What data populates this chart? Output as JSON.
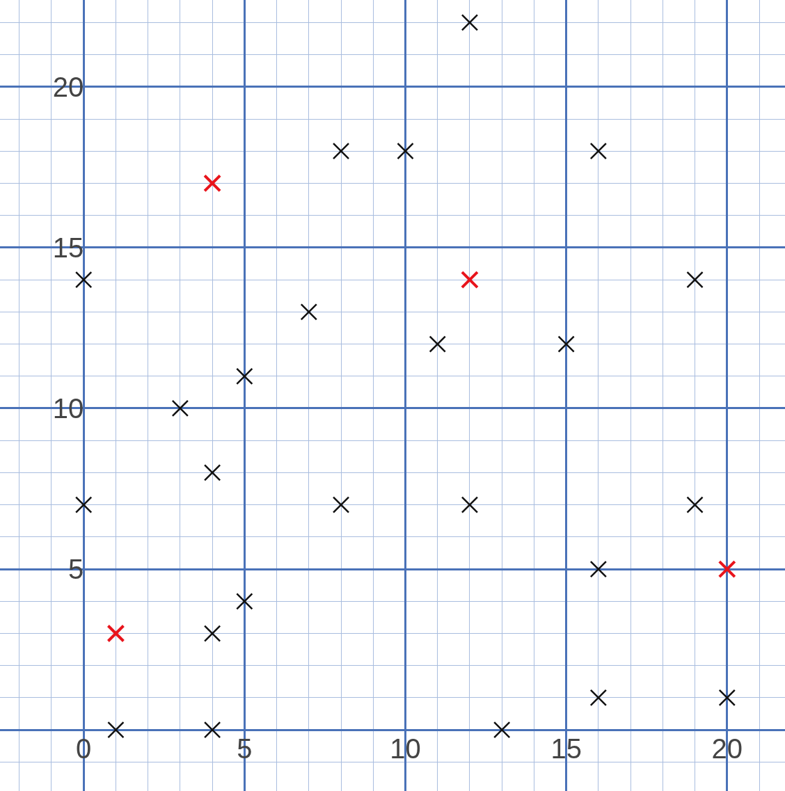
{
  "chart_data": {
    "type": "scatter",
    "xlim": [
      -2.6,
      21.8
    ],
    "ylim": [
      -1.9,
      22.7
    ],
    "xticks": [
      {
        "value": -2,
        "label": null
      },
      {
        "value": -1,
        "label": null
      },
      0,
      {
        "value": 1,
        "label": null
      },
      {
        "value": 2,
        "label": null
      },
      {
        "value": 3,
        "label": null
      },
      {
        "value": 4,
        "label": null
      },
      5,
      {
        "value": 6,
        "label": null
      },
      {
        "value": 7,
        "label": null
      },
      {
        "value": 8,
        "label": null
      },
      {
        "value": 9,
        "label": null
      },
      10,
      {
        "value": 11,
        "label": null
      },
      {
        "value": 12,
        "label": null
      },
      {
        "value": 13,
        "label": null
      },
      {
        "value": 14,
        "label": null
      },
      15,
      {
        "value": 16,
        "label": null
      },
      {
        "value": 17,
        "label": null
      },
      {
        "value": 18,
        "label": null
      },
      {
        "value": 19,
        "label": null
      },
      20,
      {
        "value": 21,
        "label": null
      }
    ],
    "yticks": [
      {
        "value": -1,
        "label": null
      },
      {
        "value": 0,
        "label": null
      },
      {
        "value": 1,
        "label": null
      },
      {
        "value": 2,
        "label": null
      },
      {
        "value": 3,
        "label": null
      },
      {
        "value": 4,
        "label": null
      },
      5,
      {
        "value": 6,
        "label": null
      },
      {
        "value": 7,
        "label": null
      },
      {
        "value": 8,
        "label": null
      },
      {
        "value": 9,
        "label": null
      },
      10,
      {
        "value": 11,
        "label": null
      },
      {
        "value": 12,
        "label": null
      },
      {
        "value": 13,
        "label": null
      },
      {
        "value": 14,
        "label": null
      },
      15,
      {
        "value": 16,
        "label": null
      },
      {
        "value": 17,
        "label": null
      },
      {
        "value": 18,
        "label": null
      },
      {
        "value": 19,
        "label": null
      },
      20,
      {
        "value": 21,
        "label": null
      },
      {
        "value": 22,
        "label": null
      }
    ],
    "grid": true,
    "marker": "cross",
    "series": [
      {
        "color": "#111111",
        "x": [
          1,
          4,
          13,
          16,
          20,
          4,
          5,
          16,
          0,
          8,
          12,
          19,
          4,
          3,
          5,
          7,
          11,
          15,
          0,
          19,
          8,
          10,
          16,
          12
        ],
        "values": [
          0,
          0,
          0,
          1,
          1,
          3,
          4,
          5,
          7,
          7,
          7,
          7,
          8,
          10,
          11,
          13,
          12,
          12,
          14,
          14,
          18,
          18,
          18,
          22
        ]
      },
      {
        "color": "#e8141c",
        "x": [
          1,
          4,
          12,
          20
        ],
        "values": [
          3,
          17,
          14,
          5
        ]
      }
    ]
  }
}
